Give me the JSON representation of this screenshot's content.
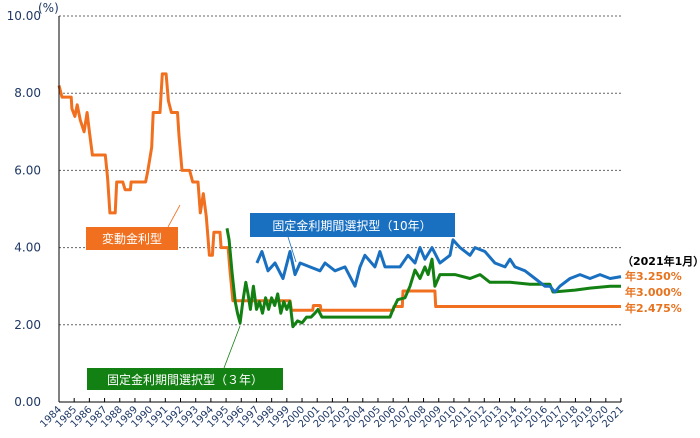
{
  "chart_data": {
    "type": "line",
    "title": "",
    "ylabel": "(%)",
    "xlabel": "",
    "ylim": [
      0,
      10
    ],
    "xlim": [
      1984,
      2021
    ],
    "yticks": [
      "0.00",
      "2.00",
      "4.00",
      "6.00",
      "8.00",
      "10.00"
    ],
    "ytick_values": [
      0,
      2,
      4,
      6,
      8,
      10
    ],
    "xticks": [
      "1984",
      "1985",
      "1986",
      "1987",
      "1988",
      "1989",
      "1990",
      "1991",
      "1992",
      "1993",
      "1994",
      "1995",
      "1996",
      "1997",
      "1998",
      "1999",
      "2000",
      "2001",
      "2002",
      "2003",
      "2004",
      "2005",
      "2006",
      "2007",
      "2008",
      "2009",
      "2010",
      "2011",
      "2012",
      "2013",
      "2014",
      "2015",
      "2016",
      "2017",
      "2018",
      "2019",
      "2020",
      "2021"
    ],
    "grid": "horizontal-dotted",
    "series": [
      {
        "name": "変動金利型",
        "color": "#f07020",
        "x": [
          1984.0,
          1984.2,
          1984.8,
          1984.85,
          1985.05,
          1985.2,
          1985.4,
          1985.65,
          1985.85,
          1986.0,
          1986.2,
          1987.05,
          1987.2,
          1987.35,
          1987.7,
          1987.8,
          1988.2,
          1988.35,
          1988.7,
          1988.75,
          1989.7,
          1989.85,
          1990.1,
          1990.2,
          1990.65,
          1990.8,
          1991.05,
          1991.2,
          1991.4,
          1991.8,
          1991.9,
          1992.1,
          1992.6,
          1992.8,
          1993.15,
          1993.3,
          1993.5,
          1993.7,
          1993.9,
          1994.1,
          1994.2,
          1994.6,
          1994.67,
          1995.13,
          1995.26,
          1995.45,
          1999.21,
          1999.3,
          2000.7,
          2000.75,
          2001.2,
          2001.25,
          2006.0,
          2006.05,
          2006.6,
          2006.65,
          2008.75,
          2008.8,
          2021.0
        ],
        "y": [
          8.2,
          7.9,
          7.9,
          7.6,
          7.4,
          7.7,
          7.3,
          7.0,
          7.5,
          7.0,
          6.4,
          6.4,
          5.8,
          4.9,
          4.9,
          5.7,
          5.7,
          5.5,
          5.5,
          5.7,
          5.7,
          6.0,
          6.6,
          7.5,
          7.5,
          8.5,
          8.5,
          7.8,
          7.5,
          7.5,
          6.9,
          6.0,
          6.0,
          5.7,
          5.7,
          4.9,
          5.4,
          4.8,
          3.8,
          3.8,
          4.4,
          4.4,
          4.0,
          4.0,
          3.4,
          2.625,
          2.625,
          2.375,
          2.375,
          2.5,
          2.5,
          2.375,
          2.375,
          2.475,
          2.475,
          2.875,
          2.875,
          2.475,
          2.475
        ]
      },
      {
        "name": "固定金利期間選択型（3年）",
        "color": "#138013",
        "x": [
          1995.06,
          1995.2,
          1995.39,
          1995.6,
          1995.75,
          1995.92,
          1996.1,
          1996.3,
          1996.44,
          1996.6,
          1996.8,
          1997.0,
          1997.2,
          1997.4,
          1997.6,
          1997.8,
          1998.0,
          1998.2,
          1998.4,
          1998.6,
          1998.8,
          1999.0,
          1999.2,
          1999.4,
          1999.7,
          2000.0,
          2000.3,
          2000.6,
          2000.85,
          2001.05,
          2001.31,
          2005.79,
          2005.99,
          2006.3,
          2006.78,
          2007.11,
          2007.44,
          2007.77,
          2008.09,
          2008.3,
          2008.56,
          2008.75,
          2009.08,
          2010.07,
          2011.06,
          2011.72,
          2012.37,
          2013.69,
          2015.0,
          2016.32,
          2016.52,
          2017.97,
          2018.96,
          2020.28,
          2021.0
        ],
        "y": [
          4.5,
          4.2,
          3.37,
          2.6,
          2.3,
          2.05,
          2.6,
          3.1,
          2.8,
          2.4,
          3.0,
          2.4,
          2.6,
          2.3,
          2.7,
          2.4,
          2.7,
          2.5,
          2.8,
          2.3,
          2.6,
          2.4,
          2.6,
          1.95,
          2.1,
          2.05,
          2.2,
          2.2,
          2.3,
          2.4,
          2.2,
          2.2,
          2.4,
          2.65,
          2.7,
          3.0,
          3.42,
          3.2,
          3.5,
          3.3,
          3.7,
          3.0,
          3.3,
          3.3,
          3.2,
          3.3,
          3.1,
          3.1,
          3.05,
          3.05,
          2.85,
          2.9,
          2.95,
          3.0,
          3.0
        ]
      },
      {
        "name": "固定金利期間選択型（10年）",
        "color": "#1a70c0",
        "x": [
          1997.03,
          1997.36,
          1997.76,
          1998.22,
          1998.75,
          1999.21,
          1999.54,
          1999.87,
          2000.52,
          2001.18,
          2001.51,
          2002.17,
          2002.83,
          2003.49,
          2003.82,
          2004.14,
          2004.8,
          2005.13,
          2005.46,
          2006.45,
          2006.98,
          2007.44,
          2007.77,
          2008.09,
          2008.56,
          2009.08,
          2009.74,
          2009.94,
          2010.4,
          2011.06,
          2011.39,
          2012.04,
          2012.7,
          2013.36,
          2013.69,
          2014.02,
          2014.68,
          2015.34,
          2015.99,
          2016.32,
          2016.65,
          2016.98,
          2017.64,
          2018.3,
          2018.96,
          2019.62,
          2020.28,
          2021.0
        ],
        "y": [
          3.6,
          3.9,
          3.4,
          3.6,
          3.2,
          3.9,
          3.3,
          3.6,
          3.5,
          3.4,
          3.6,
          3.4,
          3.5,
          3.0,
          3.5,
          3.8,
          3.5,
          3.9,
          3.5,
          3.5,
          3.8,
          3.6,
          4.0,
          3.7,
          4.0,
          3.6,
          3.8,
          4.2,
          4.0,
          3.8,
          4.0,
          3.9,
          3.6,
          3.5,
          3.7,
          3.5,
          3.4,
          3.2,
          3.0,
          3.0,
          2.85,
          3.0,
          3.2,
          3.3,
          3.2,
          3.3,
          3.2,
          3.25
        ]
      }
    ],
    "labels": {
      "floating": "変動金利型",
      "fixed10": "固定金利期間選択型（10年）",
      "fixed3": "固定金利期間選択型（３年）"
    },
    "annotations": {
      "date": "（2021年1月）",
      "fixed10_rate": "年3.250%",
      "fixed3_rate": "年3.000%",
      "floating_rate": "年2.475%",
      "rate_color": "#e8731f"
    }
  }
}
